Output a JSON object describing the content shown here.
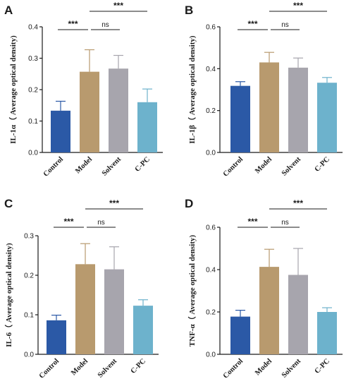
{
  "colors": {
    "control": "#2b59a6",
    "model": "#b89a6e",
    "solvent": "#a7a5ad",
    "cpc": "#6db2cc",
    "axis": "#1a1a1a"
  },
  "chart_data": [
    {
      "panel": "A",
      "type": "bar",
      "categories": [
        "Control",
        "Model",
        "Solvent",
        "C-PC"
      ],
      "values": [
        0.133,
        0.257,
        0.267,
        0.16
      ],
      "errors": [
        0.03,
        0.07,
        0.042,
        0.042
      ],
      "ylabel": "IL-1α（ Average optical density)",
      "ylim": [
        0,
        0.4
      ],
      "yticks": [
        "0.0",
        "0.1",
        "0.2",
        "0.3",
        "0.4"
      ],
      "ytick_values": [
        0,
        0.1,
        0.2,
        0.3,
        0.4
      ],
      "significance": [
        {
          "from": 0,
          "to": 1,
          "label": "***"
        },
        {
          "from": 1,
          "to": 2,
          "label": "ns"
        },
        {
          "from": 1,
          "to": 3,
          "label": "***"
        }
      ]
    },
    {
      "panel": "B",
      "type": "bar",
      "categories": [
        "Control",
        "Model",
        "Solvent",
        "C-PC"
      ],
      "values": [
        0.318,
        0.43,
        0.405,
        0.333
      ],
      "errors": [
        0.02,
        0.048,
        0.046,
        0.025
      ],
      "ylabel": "IL-1β（ Average optical density)",
      "ylim": [
        0,
        0.6
      ],
      "yticks": [
        "0.0",
        "0.2",
        "0.4",
        "0.6"
      ],
      "ytick_values": [
        0,
        0.2,
        0.4,
        0.6
      ],
      "significance": [
        {
          "from": 0,
          "to": 1,
          "label": "***"
        },
        {
          "from": 1,
          "to": 2,
          "label": "ns"
        },
        {
          "from": 1,
          "to": 3,
          "label": "***"
        }
      ]
    },
    {
      "panel": "C",
      "type": "bar",
      "categories": [
        "Control",
        "Model",
        "Solvent",
        "C-PC"
      ],
      "values": [
        0.086,
        0.228,
        0.215,
        0.123
      ],
      "errors": [
        0.013,
        0.052,
        0.057,
        0.015
      ],
      "ylabel": "IL-6（ Average optical density)",
      "ylim": [
        0,
        0.3
      ],
      "yticks": [
        "0.0",
        "0.1",
        "0.2",
        "0.3"
      ],
      "ytick_values": [
        0,
        0.1,
        0.2,
        0.3
      ],
      "significance": [
        {
          "from": 0,
          "to": 1,
          "label": "***"
        },
        {
          "from": 1,
          "to": 2,
          "label": "ns"
        },
        {
          "from": 1,
          "to": 3,
          "label": "***"
        }
      ]
    },
    {
      "panel": "D",
      "type": "bar",
      "categories": [
        "Control",
        "Model",
        "Solvent",
        "C-PC"
      ],
      "values": [
        0.178,
        0.413,
        0.375,
        0.2
      ],
      "errors": [
        0.03,
        0.083,
        0.125,
        0.02
      ],
      "ylabel": "TNF-α（ Average optical density)",
      "ylim": [
        0,
        0.6
      ],
      "yticks": [
        "0.0",
        "0.2",
        "0.4",
        "0.6"
      ],
      "ytick_values": [
        0,
        0.2,
        0.4,
        0.6
      ],
      "significance": [
        {
          "from": 0,
          "to": 1,
          "label": "***"
        },
        {
          "from": 1,
          "to": 2,
          "label": "ns"
        },
        {
          "from": 1,
          "to": 3,
          "label": "***"
        }
      ]
    }
  ]
}
